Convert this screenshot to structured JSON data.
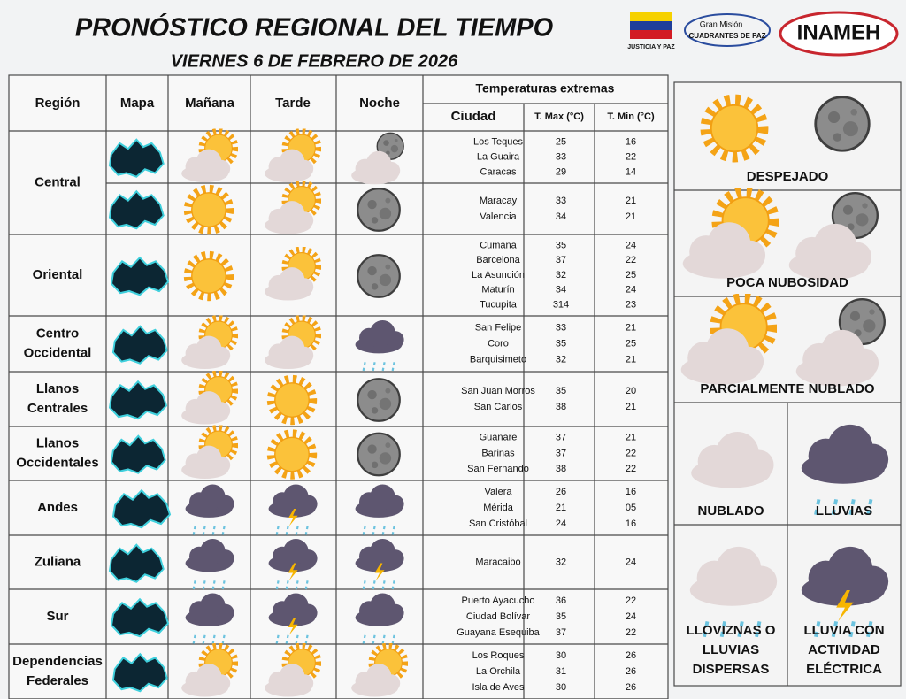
{
  "header": {
    "title": "PRONÓSTICO REGIONAL DEL TIEMPO",
    "date": "VIERNES 6 DE FEBRERO DE 2026"
  },
  "logos": {
    "flag_caption": "JUSTICIA Y PAZ",
    "mission_line1": "Gran Misión",
    "mission_line2": "CUADRANTES DE PAZ",
    "agency": "INAMEH"
  },
  "table": {
    "headers": {
      "region": "Región",
      "map": "Mapa",
      "morning": "Mañana",
      "afternoon": "Tarde",
      "night": "Noche",
      "temps": "Temperaturas  extremas",
      "city": "Ciudad",
      "tmax": "T. Max (°C)",
      "tmin": "T. Min (°C)"
    },
    "regions": [
      {
        "lines": [
          "Central"
        ],
        "blocks": [
          [
            [
              "Los Teques",
              "25",
              "16"
            ],
            [
              "La Guaira",
              "33",
              "22"
            ],
            [
              "Caracas",
              "29",
              "14"
            ]
          ],
          [
            [
              "Maracay",
              "33",
              "21"
            ],
            [
              "Valencia",
              "34",
              "21"
            ]
          ]
        ]
      },
      {
        "lines": [
          "Oriental"
        ],
        "blocks": [
          [
            [
              "Cumana",
              "35",
              "24"
            ],
            [
              "Barcelona",
              "37",
              "22"
            ],
            [
              "La Asunción",
              "32",
              "25"
            ],
            [
              "Maturín",
              "34",
              "24"
            ],
            [
              "Tucupita",
              "314",
              "23"
            ]
          ]
        ]
      },
      {
        "lines": [
          "Centro",
          "Occidental"
        ],
        "blocks": [
          [
            [
              "San Felipe",
              "33",
              "21"
            ],
            [
              "Coro",
              "35",
              "25"
            ],
            [
              "Barquisimeto",
              "32",
              "21"
            ]
          ]
        ]
      },
      {
        "lines": [
          "Llanos",
          "Centrales"
        ],
        "blocks": [
          [
            [
              "San Juan Morros",
              "35",
              "20"
            ],
            [
              "San Carlos",
              "38",
              "21"
            ]
          ]
        ]
      },
      {
        "lines": [
          "Llanos",
          "Occidentales"
        ],
        "blocks": [
          [
            [
              "Guanare",
              "37",
              "21"
            ],
            [
              "Barinas",
              "37",
              "22"
            ],
            [
              "San Fernando",
              "38",
              "22"
            ]
          ]
        ]
      },
      {
        "lines": [
          "Andes"
        ],
        "blocks": [
          [
            [
              "Valera",
              "26",
              "16"
            ],
            [
              "Mérida",
              "21",
              "05"
            ],
            [
              "San Cristóbal",
              "24",
              "16"
            ]
          ]
        ]
      },
      {
        "lines": [
          "Zuliana"
        ],
        "blocks": [
          [
            [
              "Maracaibo",
              "32",
              "24"
            ]
          ]
        ]
      },
      {
        "lines": [
          "Sur"
        ],
        "blocks": [
          [
            [
              "Puerto Ayacucho",
              "36",
              "22"
            ],
            [
              "Ciudad Bolívar",
              "35",
              "24"
            ],
            [
              "Guayana Esequiba",
              "37",
              "22"
            ]
          ]
        ]
      },
      {
        "lines": [
          "Dependencias",
          "Federales"
        ],
        "blocks": [
          [
            [
              "Los Roques",
              "30",
              "26"
            ],
            [
              "La Orchila",
              "31",
              "26"
            ],
            [
              "Isla de Aves",
              "30",
              "26"
            ]
          ]
        ]
      }
    ]
  },
  "legend": [
    {
      "lines": [
        "DESPEJADO"
      ]
    },
    {
      "lines": [
        "POCA NUBOSIDAD"
      ]
    },
    {
      "lines": [
        "PARCIALMENTE NUBLADO"
      ]
    },
    {
      "lines": [
        "NUBLADO"
      ]
    },
    {
      "lines": [
        "LLUVIAS"
      ]
    },
    {
      "lines": [
        "LLOVIZNAS O",
        "LLUVIAS",
        "DISPERSAS"
      ]
    },
    {
      "lines": [
        "LLUVIA CON",
        "ACTIVIDAD",
        "ELÉCTRICA"
      ]
    }
  ]
}
